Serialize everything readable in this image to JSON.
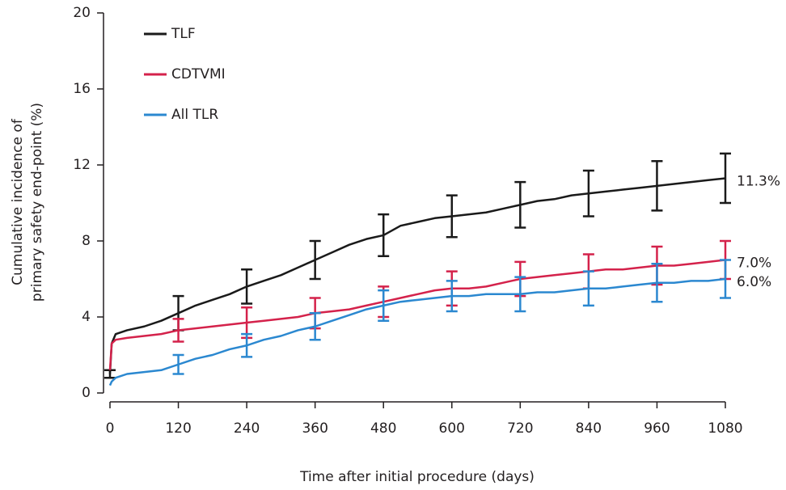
{
  "chart_data": {
    "type": "line",
    "xlabel": "Time after initial procedure (days)",
    "ylabel": [
      "Cumulative incidence of",
      "primary safety end-point (%)"
    ],
    "xlim": [
      0,
      1080
    ],
    "xticks": [
      0,
      120,
      240,
      360,
      480,
      600,
      720,
      840,
      960,
      1080
    ],
    "ylim": [
      0,
      20
    ],
    "yticks": [
      0,
      4,
      8,
      12,
      16,
      20
    ],
    "legend": "upper left",
    "x": [
      0,
      3,
      10,
      30,
      60,
      90,
      120,
      150,
      180,
      210,
      240,
      270,
      300,
      330,
      360,
      390,
      420,
      450,
      480,
      510,
      540,
      570,
      600,
      630,
      660,
      690,
      720,
      750,
      780,
      810,
      840,
      870,
      900,
      930,
      960,
      990,
      1020,
      1050,
      1080
    ],
    "series": [
      {
        "name": "TLF",
        "color": "#1a1a1a",
        "values": [
          1.0,
          2.6,
          3.1,
          3.3,
          3.5,
          3.8,
          4.2,
          4.6,
          4.9,
          5.2,
          5.6,
          5.9,
          6.2,
          6.6,
          7.0,
          7.4,
          7.8,
          8.1,
          8.3,
          8.8,
          9.0,
          9.2,
          9.3,
          9.4,
          9.5,
          9.7,
          9.9,
          10.1,
          10.2,
          10.4,
          10.5,
          10.6,
          10.7,
          10.8,
          10.9,
          11.0,
          11.1,
          11.2,
          11.3
        ],
        "errors": [
          0.2,
          null,
          null,
          null,
          null,
          null,
          0.9,
          null,
          null,
          null,
          0.9,
          null,
          null,
          null,
          1.0,
          null,
          null,
          null,
          1.1,
          null,
          null,
          null,
          1.1,
          null,
          null,
          null,
          1.2,
          null,
          null,
          null,
          1.2,
          null,
          null,
          null,
          1.3,
          null,
          null,
          null,
          1.3
        ],
        "value_labels": [
          null,
          null,
          null,
          null,
          null,
          null,
          null,
          null,
          null,
          null,
          null,
          null,
          null,
          null,
          null,
          null,
          null,
          null,
          null,
          null,
          null,
          null,
          null,
          null,
          null,
          null,
          null,
          null,
          null,
          null,
          null,
          null,
          null,
          null,
          null,
          null,
          null,
          null,
          "11.3%"
        ]
      },
      {
        "name": "CDTVMI",
        "color": "#d4224b",
        "values": [
          1.2,
          2.6,
          2.8,
          2.9,
          3.0,
          3.1,
          3.3,
          3.4,
          3.5,
          3.6,
          3.7,
          3.8,
          3.9,
          4.0,
          4.2,
          4.3,
          4.4,
          4.6,
          4.8,
          5.0,
          5.2,
          5.4,
          5.5,
          5.5,
          5.6,
          5.8,
          6.0,
          6.1,
          6.2,
          6.3,
          6.4,
          6.5,
          6.5,
          6.6,
          6.7,
          6.7,
          6.8,
          6.9,
          7.0
        ],
        "errors": [
          null,
          null,
          null,
          null,
          null,
          null,
          0.6,
          null,
          null,
          null,
          0.8,
          null,
          null,
          null,
          0.8,
          null,
          null,
          null,
          0.8,
          null,
          null,
          null,
          0.9,
          null,
          null,
          null,
          0.9,
          null,
          null,
          null,
          0.9,
          null,
          null,
          null,
          1.0,
          null,
          null,
          null,
          1.0
        ],
        "value_labels": [
          null,
          null,
          null,
          null,
          null,
          null,
          null,
          null,
          null,
          null,
          null,
          null,
          null,
          null,
          null,
          null,
          null,
          null,
          null,
          null,
          null,
          null,
          null,
          null,
          null,
          null,
          null,
          null,
          null,
          null,
          null,
          null,
          null,
          null,
          null,
          null,
          null,
          null,
          "7.0%"
        ]
      },
      {
        "name": "All TLR",
        "color": "#2b88d0",
        "values": [
          0.4,
          0.6,
          0.8,
          1.0,
          1.1,
          1.2,
          1.5,
          1.8,
          2.0,
          2.3,
          2.5,
          2.8,
          3.0,
          3.3,
          3.5,
          3.8,
          4.1,
          4.4,
          4.6,
          4.8,
          4.9,
          5.0,
          5.1,
          5.1,
          5.2,
          5.2,
          5.2,
          5.3,
          5.3,
          5.4,
          5.5,
          5.5,
          5.6,
          5.7,
          5.8,
          5.8,
          5.9,
          5.9,
          6.0
        ],
        "errors": [
          null,
          null,
          null,
          null,
          null,
          null,
          0.5,
          null,
          null,
          null,
          0.6,
          null,
          null,
          null,
          0.7,
          null,
          null,
          null,
          0.8,
          null,
          null,
          null,
          0.8,
          null,
          null,
          null,
          0.9,
          null,
          null,
          null,
          0.9,
          null,
          null,
          null,
          1.0,
          null,
          null,
          null,
          1.0
        ],
        "value_labels": [
          null,
          null,
          null,
          null,
          null,
          null,
          null,
          null,
          null,
          null,
          null,
          null,
          null,
          null,
          null,
          null,
          null,
          null,
          null,
          null,
          null,
          null,
          null,
          null,
          null,
          null,
          null,
          null,
          null,
          null,
          null,
          null,
          null,
          null,
          null,
          null,
          null,
          null,
          "6.0%"
        ]
      }
    ]
  }
}
